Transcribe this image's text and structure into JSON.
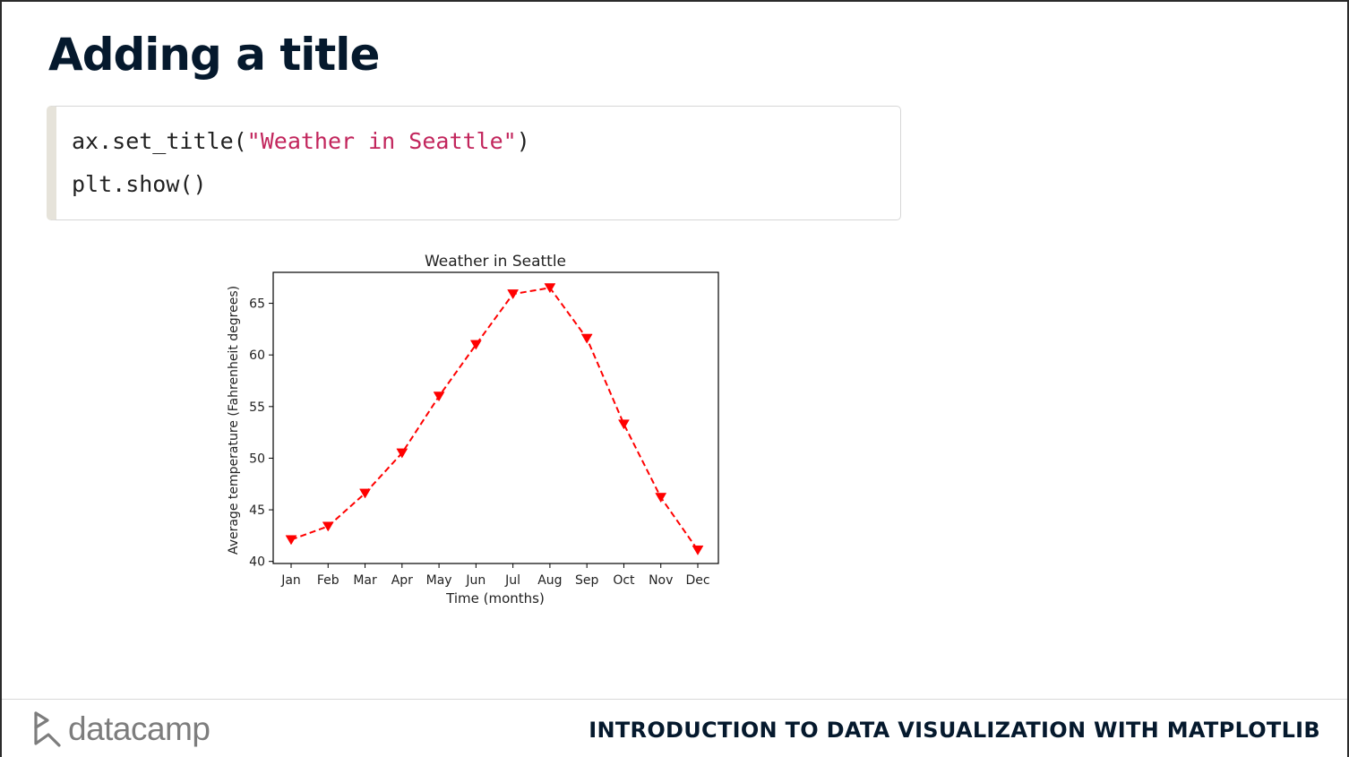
{
  "slide": {
    "title": "Adding a title",
    "footer_course": "INTRODUCTION TO DATA VISUALIZATION WITH MATPLOTLIB",
    "brand": "datacamp"
  },
  "code": {
    "line1_prefix": "ax.set_title(",
    "line1_string": "\"Weather in Seattle\"",
    "line1_suffix": ")",
    "line2": "plt.show()"
  },
  "chart_data": {
    "type": "line",
    "title": "Weather in Seattle",
    "xlabel": "Time (months)",
    "ylabel": "Average temperature (Fahrenheit degrees)",
    "categories": [
      "Jan",
      "Feb",
      "Mar",
      "Apr",
      "May",
      "Jun",
      "Jul",
      "Aug",
      "Sep",
      "Oct",
      "Nov",
      "Dec"
    ],
    "series": [
      {
        "values": [
          42.1,
          43.4,
          46.6,
          50.5,
          56.0,
          61.0,
          65.9,
          66.5,
          61.6,
          53.3,
          46.2,
          41.1
        ],
        "color": "#ff0000",
        "line_style": "dashed",
        "marker": "triangle-down"
      }
    ],
    "ylim": [
      39.8,
      68.0
    ],
    "yticks": [
      40,
      45,
      50,
      55,
      60,
      65
    ],
    "grid": false
  },
  "colors": {
    "title": "#05192d",
    "code_string": "#c2255c",
    "series": "#ff0000"
  }
}
